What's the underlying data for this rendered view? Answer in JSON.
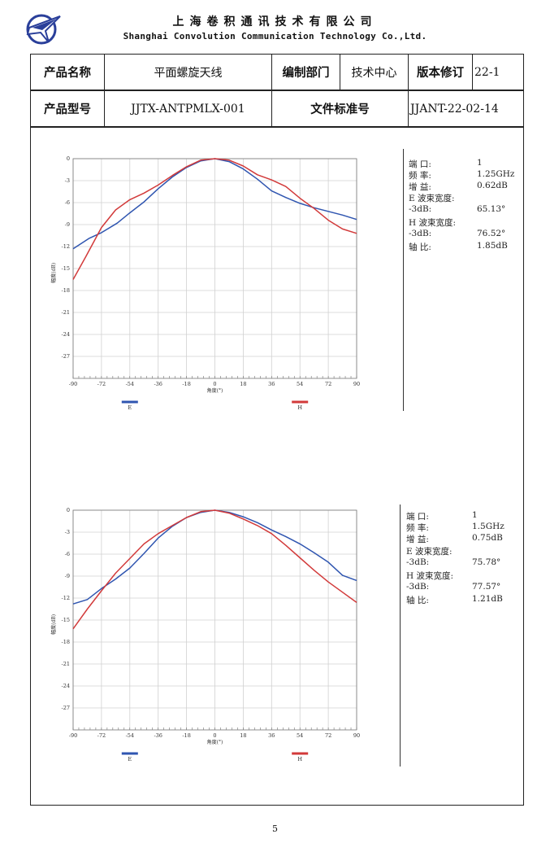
{
  "header": {
    "company_cn": "上海卷积通讯技术有限公司",
    "company_en": "Shanghai Convolution Communication Technology Co.,Ltd."
  },
  "table": {
    "product_name_label": "产品名称",
    "product_name": "平面螺旋天线",
    "dept_label": "编制部门",
    "dept": "技术中心",
    "revision_label": "版本修订",
    "revision": "22-1",
    "model_label": "产品型号",
    "model": "JJTX-ANTPMLX-001",
    "doc_no_label": "文件标准号",
    "doc_no": "JJANT-22-02-14"
  },
  "charts": [
    {
      "info": {
        "port_label": "端    口:",
        "port": "1",
        "freq_label": "频    率:",
        "freq": "1.25GHz",
        "gain_label": "增    益:",
        "gain": "0.62dB",
        "e_bw_label": "E 波束宽度:",
        "e_3db_label": "-3dB:",
        "e_3db": "65.13°",
        "h_bw_label": "H 波束宽度:",
        "h_3db_label": "-3dB:",
        "h_3db": "76.52°",
        "ar_label": "轴    比:",
        "ar": "1.85dB"
      }
    },
    {
      "info": {
        "port_label": "端    口:",
        "port": "1",
        "freq_label": "频    率:",
        "freq": "1.5GHz",
        "gain_label": "增    益:",
        "gain": "0.75dB",
        "e_bw_label": "E 波束宽度:",
        "e_3db_label": "-3dB:",
        "e_3db": "75.78°",
        "h_bw_label": "H 波束宽度:",
        "h_3db_label": "-3dB:",
        "h_3db": "77.57°",
        "ar_label": "轴    比:",
        "ar": "1.21dB"
      }
    }
  ],
  "chart_data": [
    {
      "type": "line",
      "xlabel": "角度(°)",
      "ylabel": "幅度(dB)",
      "xlim": [
        -90,
        90
      ],
      "ylim": [
        -30,
        0
      ],
      "xticks": [
        "-90",
        "-72",
        "-54",
        "-36",
        "-18",
        "0",
        "18",
        "36",
        "54",
        "72",
        "90"
      ],
      "yticks": [
        "0",
        "-3",
        "-6",
        "-9",
        "-12",
        "-15",
        "-18",
        "-21",
        "-24",
        "-27"
      ],
      "grid": true,
      "legend_position": "bottom",
      "series": [
        {
          "name": "E",
          "color": "#2f55b0",
          "x": [
            -90,
            -80,
            -72,
            -62,
            -54,
            -45,
            -36,
            -27,
            -18,
            -9,
            0,
            9,
            18,
            27,
            36,
            45,
            54,
            63,
            72,
            81,
            90
          ],
          "values": [
            -12.3,
            -10.9,
            -10.1,
            -8.8,
            -7.4,
            -5.9,
            -4.1,
            -2.5,
            -1.2,
            -0.3,
            0,
            -0.4,
            -1.4,
            -2.8,
            -4.4,
            -5.3,
            -6.1,
            -6.7,
            -7.2,
            -7.7,
            -8.3
          ]
        },
        {
          "name": "H",
          "color": "#d23a3a",
          "x": [
            -90,
            -82,
            -72,
            -63,
            -54,
            -45,
            -36,
            -27,
            -18,
            -9,
            0,
            9,
            18,
            27,
            36,
            45,
            54,
            63,
            72,
            81,
            90
          ],
          "values": [
            -16.5,
            -13.4,
            -9.4,
            -7.0,
            -5.6,
            -4.7,
            -3.6,
            -2.3,
            -1.1,
            -0.2,
            0,
            -0.2,
            -1.0,
            -2.2,
            -2.9,
            -3.8,
            -5.4,
            -6.8,
            -8.4,
            -9.6,
            -10.2
          ]
        }
      ]
    },
    {
      "type": "line",
      "xlabel": "角度(°)",
      "ylabel": "幅度(dB)",
      "xlim": [
        -90,
        90
      ],
      "ylim": [
        -30,
        0
      ],
      "xticks": [
        "-90",
        "-72",
        "-54",
        "-36",
        "-18",
        "0",
        "18",
        "36",
        "54",
        "72",
        "90"
      ],
      "yticks": [
        "0",
        "-3",
        "-6",
        "-9",
        "-12",
        "-15",
        "-18",
        "-21",
        "-24",
        "-27"
      ],
      "grid": true,
      "legend_position": "bottom",
      "series": [
        {
          "name": "E",
          "color": "#2f55b0",
          "x": [
            -90,
            -81,
            -72,
            -63,
            -54,
            -45,
            -36,
            -27,
            -18,
            -9,
            0,
            9,
            18,
            27,
            36,
            45,
            54,
            63,
            72,
            81,
            90
          ],
          "values": [
            -12.8,
            -12.2,
            -10.7,
            -9.4,
            -7.9,
            -5.9,
            -3.8,
            -2.2,
            -1.0,
            -0.3,
            0,
            -0.3,
            -0.9,
            -1.7,
            -2.7,
            -3.6,
            -4.6,
            -5.8,
            -7.1,
            -8.9,
            -9.6
          ]
        },
        {
          "name": "H",
          "color": "#d23a3a",
          "x": [
            -90,
            -81,
            -72,
            -63,
            -54,
            -45,
            -36,
            -27,
            -18,
            -9,
            0,
            9,
            18,
            27,
            36,
            45,
            54,
            63,
            72,
            81,
            90
          ],
          "values": [
            -16.2,
            -13.5,
            -11.0,
            -8.6,
            -6.6,
            -4.6,
            -3.2,
            -2.1,
            -1.0,
            -0.2,
            0,
            -0.4,
            -1.2,
            -2.1,
            -3.2,
            -4.8,
            -6.5,
            -8.2,
            -9.8,
            -11.2,
            -12.6
          ]
        }
      ]
    }
  ],
  "page_number": "5"
}
